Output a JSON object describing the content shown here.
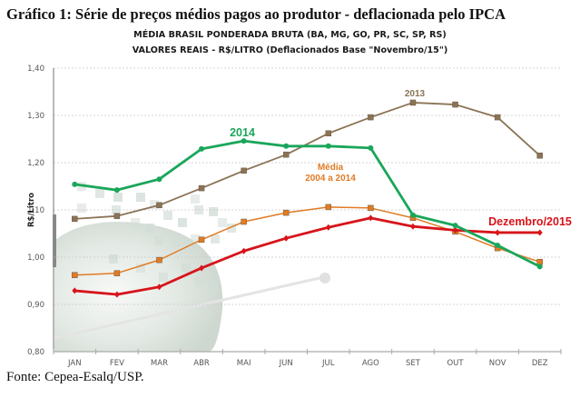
{
  "caption": "Gráfico 1: Série de preços médios pagos ao produtor - deflacionada pelo IPCA",
  "source": "Fonte: Cepea-Esalq/USP.",
  "chart_data": {
    "type": "line",
    "title": "MÉDIA BRASIL PONDERADA BRUTA (BA, MG, GO, PR, SC, SP, RS)",
    "subtitle": "VALORES REAIS - R$/LITRO (Deflacionados Base \"Novembro/15\")",
    "xlabel": "",
    "ylabel": "R$/Litro",
    "ylim": [
      0.8,
      1.4
    ],
    "yticks": [
      "0,80",
      "0,90",
      "1,00",
      "1,10",
      "1,20",
      "1,30",
      "1,40"
    ],
    "ytick_values": [
      0.8,
      0.9,
      1.0,
      1.1,
      1.2,
      1.3,
      1.4
    ],
    "grid": true,
    "categories": [
      "JAN",
      "FEV",
      "MAR",
      "ABR",
      "MAI",
      "JUN",
      "JUL",
      "AGO",
      "SET",
      "OUT",
      "NOV",
      "DEZ"
    ],
    "series": [
      {
        "name": "2013",
        "label": "2013",
        "color": "#8b7355",
        "marker": "square",
        "values": [
          1.081,
          1.087,
          1.11,
          1.146,
          1.183,
          1.217,
          1.262,
          1.296,
          1.327,
          1.323,
          1.296,
          1.215
        ]
      },
      {
        "name": "2014",
        "label": "2014",
        "color": "#1aa65a",
        "marker": "circle",
        "values": [
          1.154,
          1.142,
          1.165,
          1.229,
          1.246,
          1.235,
          1.235,
          1.231,
          1.089,
          1.067,
          1.025,
          0.98
        ]
      },
      {
        "name": "Média 2004 a 2014",
        "label": [
          "Média",
          "2004 a 2014"
        ],
        "color": "#e07b24",
        "marker": "square",
        "values": [
          0.962,
          0.966,
          0.994,
          1.037,
          1.075,
          1.094,
          1.106,
          1.104,
          1.083,
          1.054,
          1.019,
          0.99
        ]
      },
      {
        "name": "Dezembro/2015",
        "label": "Dezembro/2015",
        "color": "#d7141a",
        "marker": "diamond",
        "values": [
          0.929,
          0.921,
          0.937,
          0.977,
          1.013,
          1.04,
          1.063,
          1.083,
          1.065,
          1.057,
          1.052,
          1.052
        ]
      }
    ]
  }
}
